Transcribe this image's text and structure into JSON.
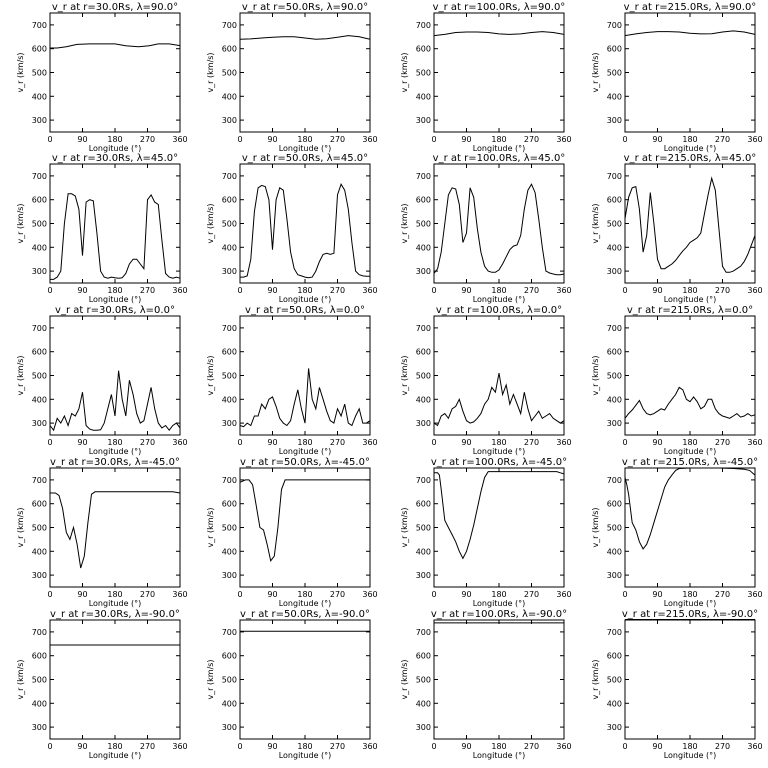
{
  "chart_data": {
    "type": "line",
    "xlabel": "Longitude  (°)",
    "ylabel": "v_r  (km/s)",
    "xlim": [
      0,
      360
    ],
    "ylim": [
      250,
      750
    ],
    "xticks": [
      "0",
      "90",
      "180",
      "270",
      "360"
    ],
    "yticks": [
      "300",
      "400",
      "500",
      "600",
      "700"
    ],
    "grid": false,
    "panels": [
      {
        "title": "v_r at r=30.0Rs, λ=90.0°",
        "x": [
          0,
          20,
          45,
          75,
          110,
          145,
          180,
          210,
          245,
          275,
          300,
          330,
          360
        ],
        "y": [
          603,
          603,
          608,
          618,
          620,
          620,
          620,
          612,
          608,
          612,
          620,
          620,
          613
        ]
      },
      {
        "title": "v_r at r=50.0Rs, λ=90.0°",
        "x": [
          0,
          30,
          60,
          90,
          120,
          150,
          180,
          210,
          240,
          270,
          300,
          330,
          360
        ],
        "y": [
          640,
          641,
          645,
          648,
          650,
          650,
          645,
          640,
          642,
          648,
          655,
          650,
          640
        ]
      },
      {
        "title": "v_r at r=100.0Rs, λ=90.0°",
        "x": [
          0,
          30,
          60,
          90,
          120,
          150,
          180,
          210,
          240,
          270,
          300,
          330,
          360
        ],
        "y": [
          655,
          660,
          668,
          670,
          670,
          668,
          662,
          660,
          662,
          668,
          672,
          668,
          660
        ]
      },
      {
        "title": "v_r at r=215.0Rs, λ=90.0°",
        "x": [
          0,
          30,
          60,
          90,
          120,
          150,
          180,
          210,
          240,
          270,
          300,
          330,
          360
        ],
        "y": [
          655,
          662,
          668,
          672,
          672,
          670,
          665,
          662,
          663,
          670,
          675,
          670,
          660
        ]
      },
      {
        "title": "v_r at r=30.0Rs, λ=45.0°",
        "x": [
          0,
          10,
          20,
          30,
          40,
          50,
          60,
          70,
          80,
          90,
          100,
          110,
          120,
          130,
          140,
          150,
          160,
          170,
          180,
          190,
          200,
          210,
          220,
          230,
          240,
          250,
          260,
          270,
          280,
          290,
          300,
          310,
          320,
          330,
          340,
          350,
          360
        ],
        "y": [
          265,
          265,
          275,
          300,
          500,
          625,
          625,
          615,
          560,
          365,
          590,
          600,
          595,
          460,
          300,
          275,
          270,
          275,
          272,
          270,
          272,
          290,
          330,
          350,
          350,
          330,
          310,
          600,
          620,
          590,
          580,
          430,
          290,
          275,
          270,
          275,
          270
        ]
      },
      {
        "title": "v_r at r=50.0Rs, λ=45.0°",
        "x": [
          0,
          10,
          20,
          30,
          40,
          50,
          60,
          70,
          80,
          90,
          100,
          110,
          120,
          130,
          140,
          150,
          160,
          170,
          180,
          190,
          200,
          210,
          220,
          230,
          240,
          250,
          260,
          270,
          280,
          290,
          300,
          310,
          320,
          330,
          340,
          350,
          360
        ],
        "y": [
          275,
          275,
          280,
          350,
          550,
          650,
          660,
          655,
          600,
          390,
          600,
          650,
          640,
          520,
          380,
          310,
          285,
          280,
          275,
          272,
          275,
          300,
          340,
          370,
          375,
          370,
          375,
          620,
          665,
          640,
          560,
          420,
          300,
          285,
          280,
          278,
          278
        ]
      },
      {
        "title": "v_r at r=100.0Rs, λ=45.0°",
        "x": [
          0,
          10,
          20,
          30,
          40,
          50,
          60,
          70,
          80,
          90,
          100,
          110,
          120,
          130,
          140,
          150,
          160,
          170,
          180,
          190,
          200,
          210,
          220,
          230,
          240,
          250,
          260,
          270,
          280,
          290,
          300,
          310,
          320,
          330,
          340,
          350,
          360
        ],
        "y": [
          290,
          310,
          380,
          500,
          620,
          650,
          645,
          580,
          420,
          460,
          650,
          610,
          480,
          380,
          320,
          300,
          295,
          295,
          305,
          330,
          360,
          390,
          405,
          410,
          450,
          560,
          640,
          665,
          630,
          520,
          400,
          300,
          292,
          288,
          285,
          285,
          288
        ]
      },
      {
        "title": "v_r at r=215.0Rs, λ=45.0°",
        "x": [
          0,
          10,
          20,
          30,
          40,
          50,
          60,
          70,
          80,
          90,
          100,
          110,
          120,
          130,
          140,
          150,
          160,
          170,
          180,
          190,
          200,
          210,
          220,
          230,
          240,
          250,
          260,
          270,
          280,
          290,
          300,
          310,
          320,
          330,
          340,
          350,
          360
        ],
        "y": [
          520,
          610,
          650,
          655,
          560,
          380,
          450,
          630,
          500,
          350,
          310,
          310,
          320,
          330,
          345,
          365,
          385,
          400,
          420,
          430,
          440,
          460,
          540,
          620,
          690,
          640,
          480,
          320,
          295,
          295,
          300,
          310,
          320,
          340,
          370,
          410,
          450
        ]
      },
      {
        "title": "v_r at r=30.0Rs, λ=0.0°",
        "x": [
          0,
          10,
          20,
          30,
          40,
          50,
          60,
          70,
          80,
          90,
          100,
          110,
          120,
          130,
          140,
          150,
          160,
          170,
          180,
          190,
          200,
          210,
          220,
          230,
          240,
          250,
          260,
          270,
          280,
          290,
          300,
          310,
          320,
          330,
          340,
          350,
          360
        ],
        "y": [
          290,
          270,
          320,
          300,
          330,
          290,
          340,
          330,
          360,
          430,
          290,
          275,
          270,
          270,
          272,
          300,
          360,
          420,
          330,
          520,
          400,
          330,
          480,
          420,
          340,
          300,
          310,
          380,
          450,
          360,
          300,
          280,
          290,
          270,
          290,
          300,
          280
        ]
      },
      {
        "title": "v_r at r=50.0Rs, λ=0.0°",
        "x": [
          0,
          10,
          20,
          30,
          40,
          50,
          60,
          70,
          80,
          90,
          100,
          110,
          120,
          130,
          140,
          150,
          160,
          170,
          180,
          190,
          200,
          210,
          220,
          230,
          240,
          250,
          260,
          270,
          280,
          290,
          300,
          310,
          320,
          330,
          340,
          350,
          360
        ],
        "y": [
          290,
          285,
          300,
          290,
          330,
          330,
          380,
          360,
          400,
          410,
          370,
          320,
          300,
          290,
          310,
          380,
          440,
          360,
          300,
          530,
          400,
          360,
          450,
          400,
          350,
          310,
          300,
          360,
          330,
          380,
          300,
          290,
          330,
          360,
          300,
          300,
          310
        ]
      },
      {
        "title": "v_r at r=100.0Rs, λ=0.0°",
        "x": [
          0,
          10,
          20,
          30,
          40,
          50,
          60,
          70,
          80,
          90,
          100,
          110,
          120,
          130,
          140,
          150,
          160,
          170,
          180,
          190,
          200,
          210,
          220,
          230,
          240,
          250,
          260,
          270,
          280,
          290,
          300,
          310,
          320,
          330,
          340,
          350,
          360
        ],
        "y": [
          300,
          290,
          330,
          340,
          320,
          360,
          370,
          400,
          350,
          310,
          300,
          305,
          320,
          340,
          380,
          400,
          450,
          430,
          510,
          420,
          460,
          380,
          420,
          380,
          340,
          430,
          360,
          310,
          330,
          350,
          320,
          330,
          340,
          320,
          310,
          300,
          310
        ]
      },
      {
        "title": "v_r at r=215.0Rs, λ=0.0°",
        "x": [
          0,
          10,
          20,
          30,
          40,
          50,
          60,
          70,
          80,
          90,
          100,
          110,
          120,
          130,
          140,
          150,
          160,
          170,
          180,
          190,
          200,
          210,
          220,
          230,
          240,
          250,
          260,
          270,
          280,
          290,
          300,
          310,
          320,
          330,
          340,
          350,
          360
        ],
        "y": [
          320,
          340,
          355,
          375,
          395,
          360,
          340,
          335,
          340,
          350,
          360,
          355,
          380,
          400,
          420,
          450,
          440,
          400,
          390,
          410,
          390,
          360,
          370,
          400,
          400,
          360,
          340,
          330,
          325,
          320,
          330,
          340,
          325,
          330,
          340,
          330,
          335
        ]
      },
      {
        "title": "v_r at r=30.0Rs, λ=-45.0°",
        "x": [
          0,
          15,
          25,
          35,
          45,
          55,
          65,
          75,
          85,
          95,
          105,
          115,
          125,
          150,
          200,
          250,
          300,
          340,
          360
        ],
        "y": [
          645,
          645,
          635,
          580,
          480,
          450,
          500,
          430,
          330,
          380,
          520,
          640,
          650,
          650,
          650,
          650,
          650,
          650,
          645
        ]
      },
      {
        "title": "v_r at r=50.0Rs, λ=-45.0°",
        "x": [
          0,
          15,
          25,
          35,
          45,
          55,
          65,
          75,
          85,
          95,
          105,
          115,
          125,
          150,
          200,
          250,
          300,
          340,
          360
        ],
        "y": [
          690,
          700,
          700,
          680,
          590,
          500,
          490,
          430,
          360,
          380,
          500,
          660,
          700,
          700,
          700,
          700,
          700,
          700,
          700
        ]
      },
      {
        "title": "v_r at r=100.0Rs, λ=-45.0°",
        "x": [
          0,
          10,
          15,
          20,
          30,
          40,
          50,
          60,
          70,
          80,
          90,
          100,
          110,
          120,
          130,
          140,
          150,
          200,
          250,
          300,
          340,
          350,
          360
        ],
        "y": [
          730,
          730,
          720,
          660,
          530,
          500,
          470,
          440,
          400,
          370,
          400,
          450,
          510,
          580,
          650,
          710,
          735,
          735,
          735,
          735,
          735,
          730,
          725
        ]
      },
      {
        "title": "v_r at r=215.0Rs, λ=-45.0°",
        "x": [
          0,
          5,
          10,
          20,
          30,
          40,
          50,
          60,
          70,
          80,
          90,
          100,
          110,
          120,
          130,
          140,
          150,
          180,
          220,
          260,
          300,
          330,
          345,
          360
        ],
        "y": [
          710,
          680,
          640,
          520,
          490,
          440,
          410,
          430,
          470,
          520,
          570,
          620,
          670,
          700,
          720,
          740,
          748,
          750,
          750,
          750,
          748,
          745,
          740,
          720
        ]
      },
      {
        "title": "v_r at r=30.0Rs, λ=-90.0°",
        "x": [
          0,
          90,
          180,
          270,
          360
        ],
        "y": [
          645,
          645,
          645,
          645,
          645
        ]
      },
      {
        "title": "v_r at r=50.0Rs, λ=-90.0°",
        "x": [
          0,
          90,
          180,
          270,
          360
        ],
        "y": [
          703,
          703,
          703,
          703,
          703
        ]
      },
      {
        "title": "v_r at r=100.0Rs, λ=-90.0°",
        "x": [
          0,
          90,
          180,
          270,
          360
        ],
        "y": [
          738,
          738,
          738,
          738,
          738
        ]
      },
      {
        "title": "v_r at r=215.0Rs, λ=-90.0°",
        "x": [
          0,
          90,
          180,
          270,
          360
        ],
        "y": [
          752,
          752,
          752,
          752,
          752
        ]
      }
    ]
  }
}
